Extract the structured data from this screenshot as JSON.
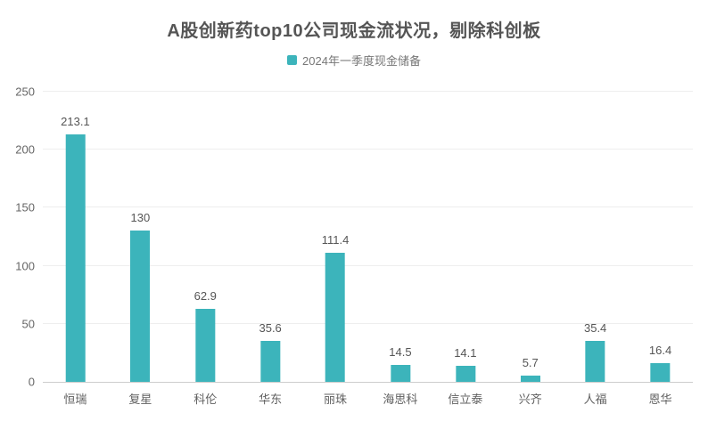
{
  "title": "A股创新药top10公司现金流状况，剔除科创板",
  "legend": {
    "label": "2024年一季度现金储备",
    "marker_color": "#3cb4bb"
  },
  "chart_data": {
    "type": "bar",
    "title": "A股创新药top10公司现金流状况，剔除科创板",
    "categories": [
      "恒瑞",
      "复星",
      "科伦",
      "华东",
      "丽珠",
      "海思科",
      "信立泰",
      "兴齐",
      "人福",
      "恩华"
    ],
    "values": [
      213.1,
      130,
      62.9,
      35.6,
      111.4,
      14.5,
      14.1,
      5.7,
      35.4,
      16.4
    ],
    "value_labels": [
      "213.1",
      "130",
      "62.9",
      "35.6",
      "111.4",
      "14.5",
      "14.1",
      "5.7",
      "35.4",
      "16.4"
    ],
    "series_name": "2024年一季度现金储备",
    "xlabel": "",
    "ylabel": "",
    "ylim": [
      0,
      250
    ],
    "yticks": [
      0,
      50,
      100,
      150,
      200,
      250
    ],
    "grid": true,
    "legend_position": "top",
    "bar_color": "#3cb4bb"
  },
  "colors": {
    "bar": "#3cb4bb",
    "title_text": "#555555",
    "axis_text": "#666666",
    "gridline": "#eeeeee",
    "axis_line": "#cccccc",
    "background": "#ffffff"
  }
}
